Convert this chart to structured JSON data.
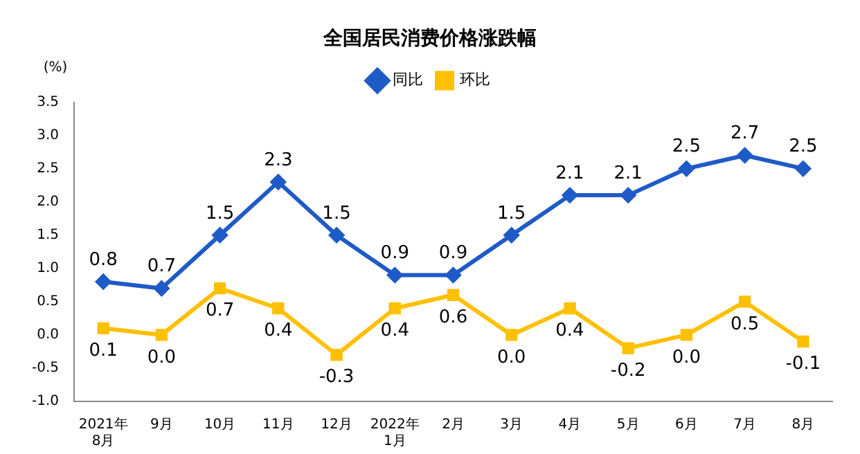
{
  "chart_data": {
    "type": "line",
    "title": "全国居民消费价格涨跌幅",
    "ylabel": "(%)",
    "categories": [
      "2021年\n8月",
      "9月",
      "10月",
      "11月",
      "12月",
      "2022年\n1月",
      "2月",
      "3月",
      "4月",
      "5月",
      "6月",
      "7月",
      "8月"
    ],
    "series": [
      {
        "name": "同比",
        "color": "#1f5bc6",
        "marker": "diamond",
        "values": [
          0.8,
          0.7,
          1.5,
          2.3,
          1.5,
          0.9,
          0.9,
          1.5,
          2.1,
          2.1,
          2.5,
          2.7,
          2.5
        ],
        "value_labels": [
          "0.8",
          "0.7",
          "1.5",
          "2.3",
          "1.5",
          "0.9",
          "0.9",
          "1.5",
          "2.1",
          "2.1",
          "2.5",
          "2.7",
          "2.5"
        ]
      },
      {
        "name": "环比",
        "color": "#ffc000",
        "marker": "square",
        "values": [
          0.1,
          0.0,
          0.7,
          0.4,
          -0.3,
          0.4,
          0.6,
          0.0,
          0.4,
          -0.2,
          0.0,
          0.5,
          -0.1
        ],
        "value_labels": [
          "0.1",
          "0.0",
          "0.7",
          "0.4",
          "-0.3",
          "0.4",
          "0.6",
          "0.0",
          "0.4",
          "-0.2",
          "0.0",
          "0.5",
          "-0.1"
        ]
      }
    ],
    "ylim": [
      -1.0,
      3.5
    ],
    "yticks": [
      {
        "value": -1.0,
        "label": "-1.0"
      },
      {
        "value": -0.5,
        "label": "-0.5"
      },
      {
        "value": 0,
        "label": "0.0"
      },
      {
        "value": 0.5,
        "label": "0.5"
      },
      {
        "value": 1.0,
        "label": "1.0"
      },
      {
        "value": 1.5,
        "label": "1.5"
      },
      {
        "value": 2.0,
        "label": "2.0"
      },
      {
        "value": 2.5,
        "label": "2.5"
      },
      {
        "value": 3.0,
        "label": "3.0"
      },
      {
        "value": 3.5,
        "label": "3.5"
      }
    ],
    "grid": false,
    "legend": "top",
    "line_style": "solid"
  }
}
